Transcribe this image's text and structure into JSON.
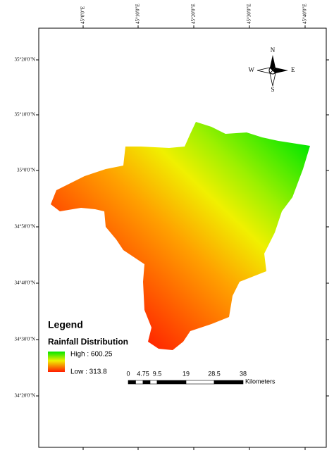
{
  "graticule": {
    "longitude_labels": [
      "45°0'0\"E",
      "45°10'0\"E",
      "45°20'0\"E",
      "45°30'0\"E",
      "45°40'0\"E"
    ],
    "latitude_labels": [
      "35°20'0\"N",
      "35°10'0\"N",
      "35°0'0\"N",
      "34°50'0\"N",
      "34°40'0\"N",
      "34°30'0\"N",
      "34°20'0\"N"
    ]
  },
  "north_arrow": {
    "n": "N",
    "s": "S",
    "e": "E",
    "w": "W"
  },
  "legend": {
    "title": "Legend",
    "layer": "Rainfall Distribution",
    "high": "High : 600.25",
    "low": "Low : 313.8"
  },
  "scale_bar": {
    "labels": [
      "0",
      "4.75",
      "9.5",
      "19",
      "28.5",
      "38"
    ],
    "unit": "Kilometers"
  }
}
